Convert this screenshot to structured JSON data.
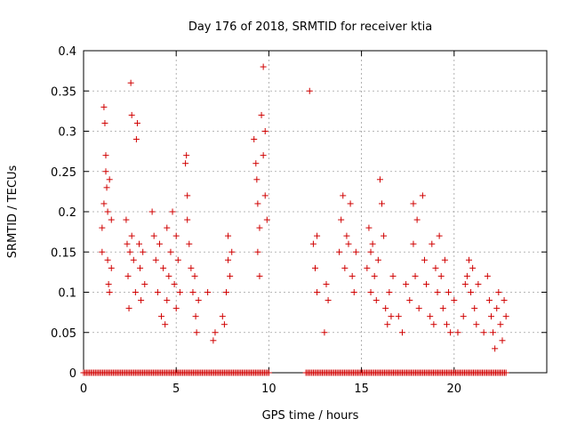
{
  "chart_data": {
    "type": "scatter",
    "title": "Day 176 of 2018, SRMTID for receiver ktia",
    "xlabel": "GPS time / hours",
    "ylabel": "SRMTID / TECUs",
    "xlim": [
      0,
      25
    ],
    "ylim": [
      0,
      0.4
    ],
    "xticks": [
      "0",
      "5",
      "10",
      "15",
      "20"
    ],
    "yticks": [
      "0",
      "0.05",
      "0.1",
      "0.15",
      "0.2",
      "0.25",
      "0.3",
      "0.35",
      "0.4"
    ],
    "grid": true,
    "marker": "+",
    "color": "#d00000",
    "series": [
      {
        "name": "SRMTID",
        "points": [
          [
            1.0,
            0.15
          ],
          [
            1.0,
            0.18
          ],
          [
            1.1,
            0.21
          ],
          [
            1.1,
            0.33
          ],
          [
            1.15,
            0.31
          ],
          [
            1.2,
            0.27
          ],
          [
            1.2,
            0.25
          ],
          [
            1.25,
            0.23
          ],
          [
            1.3,
            0.2
          ],
          [
            1.3,
            0.14
          ],
          [
            1.35,
            0.11
          ],
          [
            1.4,
            0.1
          ],
          [
            1.4,
            0.24
          ],
          [
            1.5,
            0.19
          ],
          [
            1.5,
            0.13
          ],
          [
            2.3,
            0.19
          ],
          [
            2.35,
            0.16
          ],
          [
            2.4,
            0.12
          ],
          [
            2.45,
            0.08
          ],
          [
            2.5,
            0.15
          ],
          [
            2.55,
            0.36
          ],
          [
            2.6,
            0.32
          ],
          [
            2.6,
            0.17
          ],
          [
            2.7,
            0.14
          ],
          [
            2.8,
            0.1
          ],
          [
            2.85,
            0.29
          ],
          [
            2.9,
            0.31
          ],
          [
            3.0,
            0.16
          ],
          [
            3.05,
            0.13
          ],
          [
            3.1,
            0.09
          ],
          [
            3.2,
            0.15
          ],
          [
            3.3,
            0.11
          ],
          [
            3.7,
            0.2
          ],
          [
            3.8,
            0.17
          ],
          [
            3.9,
            0.14
          ],
          [
            4.0,
            0.1
          ],
          [
            4.1,
            0.16
          ],
          [
            4.2,
            0.07
          ],
          [
            4.3,
            0.13
          ],
          [
            4.4,
            0.06
          ],
          [
            4.5,
            0.18
          ],
          [
            4.5,
            0.09
          ],
          [
            4.6,
            0.12
          ],
          [
            4.7,
            0.15
          ],
          [
            4.8,
            0.2
          ],
          [
            4.9,
            0.11
          ],
          [
            5.0,
            0.08
          ],
          [
            5.0,
            0.17
          ],
          [
            5.1,
            0.14
          ],
          [
            5.2,
            0.1
          ],
          [
            5.5,
            0.26
          ],
          [
            5.55,
            0.27
          ],
          [
            5.6,
            0.22
          ],
          [
            5.6,
            0.19
          ],
          [
            5.7,
            0.16
          ],
          [
            5.8,
            0.13
          ],
          [
            5.9,
            0.1
          ],
          [
            6.0,
            0.12
          ],
          [
            6.05,
            0.07
          ],
          [
            6.1,
            0.05
          ],
          [
            6.2,
            0.09
          ],
          [
            6.7,
            0.1
          ],
          [
            7.0,
            0.04
          ],
          [
            7.1,
            0.05
          ],
          [
            7.5,
            0.07
          ],
          [
            7.6,
            0.06
          ],
          [
            7.7,
            0.1
          ],
          [
            7.8,
            0.17
          ],
          [
            7.8,
            0.14
          ],
          [
            7.9,
            0.12
          ],
          [
            8.0,
            0.15
          ],
          [
            9.2,
            0.29
          ],
          [
            9.3,
            0.26
          ],
          [
            9.35,
            0.24
          ],
          [
            9.4,
            0.21
          ],
          [
            9.4,
            0.15
          ],
          [
            9.5,
            0.12
          ],
          [
            9.5,
            0.18
          ],
          [
            9.6,
            0.32
          ],
          [
            9.7,
            0.38
          ],
          [
            9.7,
            0.27
          ],
          [
            9.8,
            0.3
          ],
          [
            9.8,
            0.22
          ],
          [
            9.9,
            0.19
          ],
          [
            12.2,
            0.35
          ],
          [
            12.4,
            0.16
          ],
          [
            12.5,
            0.13
          ],
          [
            12.6,
            0.1
          ],
          [
            12.6,
            0.17
          ],
          [
            13.0,
            0.05
          ],
          [
            13.1,
            0.11
          ],
          [
            13.2,
            0.09
          ],
          [
            13.8,
            0.15
          ],
          [
            13.9,
            0.19
          ],
          [
            14.0,
            0.22
          ],
          [
            14.1,
            0.13
          ],
          [
            14.2,
            0.17
          ],
          [
            14.3,
            0.16
          ],
          [
            14.4,
            0.21
          ],
          [
            14.5,
            0.12
          ],
          [
            14.6,
            0.1
          ],
          [
            14.7,
            0.15
          ],
          [
            15.3,
            0.13
          ],
          [
            15.4,
            0.18
          ],
          [
            15.5,
            0.15
          ],
          [
            15.5,
            0.1
          ],
          [
            15.6,
            0.16
          ],
          [
            15.7,
            0.12
          ],
          [
            15.8,
            0.09
          ],
          [
            15.9,
            0.14
          ],
          [
            16.0,
            0.24
          ],
          [
            16.1,
            0.21
          ],
          [
            16.2,
            0.17
          ],
          [
            16.3,
            0.08
          ],
          [
            16.4,
            0.06
          ],
          [
            16.5,
            0.1
          ],
          [
            16.6,
            0.07
          ],
          [
            16.7,
            0.12
          ],
          [
            17.0,
            0.07
          ],
          [
            17.2,
            0.05
          ],
          [
            17.4,
            0.11
          ],
          [
            17.6,
            0.09
          ],
          [
            17.8,
            0.16
          ],
          [
            17.8,
            0.21
          ],
          [
            17.9,
            0.12
          ],
          [
            18.0,
            0.19
          ],
          [
            18.1,
            0.08
          ],
          [
            18.3,
            0.22
          ],
          [
            18.4,
            0.14
          ],
          [
            18.5,
            0.11
          ],
          [
            18.7,
            0.07
          ],
          [
            18.8,
            0.16
          ],
          [
            18.9,
            0.06
          ],
          [
            19.0,
            0.13
          ],
          [
            19.1,
            0.1
          ],
          [
            19.2,
            0.17
          ],
          [
            19.3,
            0.12
          ],
          [
            19.4,
            0.08
          ],
          [
            19.5,
            0.14
          ],
          [
            19.6,
            0.06
          ],
          [
            19.7,
            0.1
          ],
          [
            19.8,
            0.05
          ],
          [
            20.0,
            0.09
          ],
          [
            20.2,
            0.05
          ],
          [
            20.5,
            0.07
          ],
          [
            20.6,
            0.11
          ],
          [
            20.7,
            0.12
          ],
          [
            20.8,
            0.14
          ],
          [
            20.9,
            0.1
          ],
          [
            21.0,
            0.13
          ],
          [
            21.1,
            0.08
          ],
          [
            21.2,
            0.06
          ],
          [
            21.3,
            0.11
          ],
          [
            21.6,
            0.05
          ],
          [
            21.8,
            0.12
          ],
          [
            21.9,
            0.09
          ],
          [
            22.0,
            0.07
          ],
          [
            22.1,
            0.05
          ],
          [
            22.2,
            0.03
          ],
          [
            22.3,
            0.08
          ],
          [
            22.4,
            0.1
          ],
          [
            22.5,
            0.06
          ],
          [
            22.6,
            0.04
          ],
          [
            22.7,
            0.09
          ],
          [
            22.8,
            0.07
          ]
        ],
        "zero_ranges": [
          [
            0.0,
            10.0
          ],
          [
            12.0,
            22.8
          ]
        ]
      }
    ]
  }
}
